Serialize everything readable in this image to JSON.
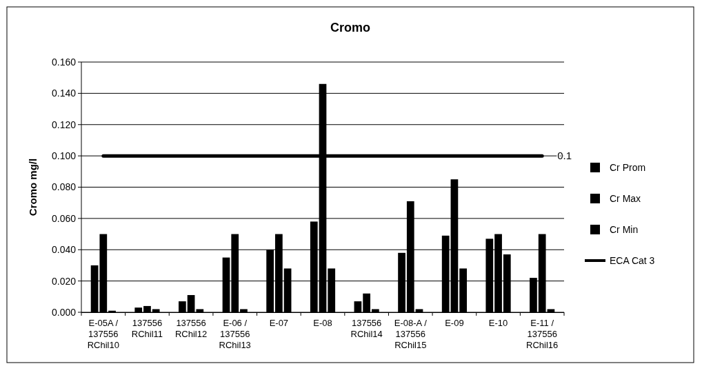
{
  "chart_data": {
    "type": "bar",
    "title": "Cromo",
    "ylabel": "Cromo mg/l",
    "categories": [
      "E-05A / 137556 RChil10",
      "137556 RChil11",
      "137556 RChil12",
      "E-06 / 137556 RChil13",
      "E-07",
      "E-08",
      "137556 RChil14",
      "E-08-A / 137556 RChil15",
      "E-09",
      "E-10",
      "E-11 / 137556 RChil16"
    ],
    "series": [
      {
        "name": "Cr Prom",
        "color": "#000000",
        "values": [
          0.03,
          0.003,
          0.007,
          0.035,
          0.04,
          0.058,
          0.007,
          0.038,
          0.049,
          0.047,
          0.022
        ]
      },
      {
        "name": "Cr Max",
        "color": "#000000",
        "values": [
          0.05,
          0.004,
          0.011,
          0.05,
          0.05,
          0.146,
          0.012,
          0.071,
          0.085,
          0.05,
          0.05
        ]
      },
      {
        "name": "Cr Min",
        "color": "#000000",
        "values": [
          0.001,
          0.002,
          0.002,
          0.002,
          0.028,
          0.028,
          0.002,
          0.002,
          0.028,
          0.037,
          0.002
        ]
      },
      {
        "name": "ECA Cat 3",
        "type": "line",
        "color": "#000000",
        "values": [
          0.1,
          0.1,
          0.1,
          0.1,
          0.1,
          0.1,
          0.1,
          0.1,
          0.1,
          0.1,
          0.1
        ],
        "value_labels": [
          null,
          null,
          null,
          null,
          null,
          null,
          null,
          null,
          null,
          null,
          "0.1"
        ]
      }
    ],
    "ylim": [
      0,
      0.16
    ],
    "yticks": [
      {
        "value": 0,
        "label": "0.000"
      },
      {
        "value": 0.02,
        "label": "0.020"
      },
      {
        "value": 0.04,
        "label": "0.040"
      },
      {
        "value": 0.06,
        "label": "0.060"
      },
      {
        "value": 0.08,
        "label": "0.080"
      },
      {
        "value": 0.1,
        "label": "0.100"
      },
      {
        "value": 0.12,
        "label": "0.120"
      },
      {
        "value": 0.14,
        "label": "0.140"
      },
      {
        "value": 0.16,
        "label": "0.160"
      }
    ],
    "grid": "y",
    "legend": "right"
  }
}
